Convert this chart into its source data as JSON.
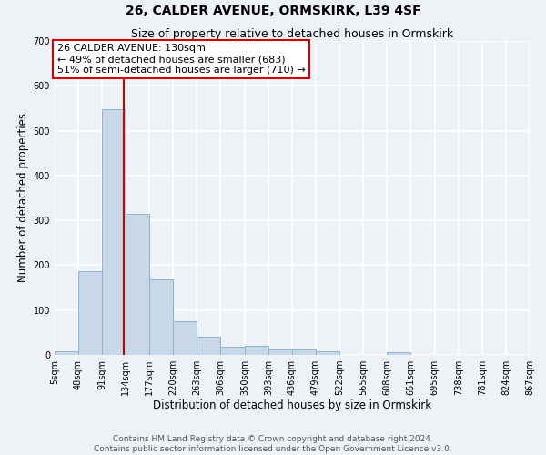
{
  "title": "26, CALDER AVENUE, ORMSKIRK, L39 4SF",
  "subtitle": "Size of property relative to detached houses in Ormskirk",
  "xlabel": "Distribution of detached houses by size in Ormskirk",
  "ylabel": "Number of detached properties",
  "bin_edges": [
    5,
    48,
    91,
    134,
    177,
    220,
    263,
    306,
    350,
    393,
    436,
    479,
    522,
    565,
    608,
    651,
    695,
    738,
    781,
    824,
    867
  ],
  "bar_heights": [
    8,
    187,
    547,
    315,
    168,
    75,
    41,
    18,
    20,
    12,
    12,
    8,
    0,
    0,
    7,
    0,
    0,
    0,
    0,
    0
  ],
  "bar_color": "#c8d8e8",
  "bar_edgecolor": "#8ab4cc",
  "vline_x": 130,
  "vline_color": "#cc0000",
  "annotation_line1": "26 CALDER AVENUE: 130sqm",
  "annotation_line2": "← 49% of detached houses are smaller (683)",
  "annotation_line3": "51% of semi-detached houses are larger (710) →",
  "annotation_box_facecolor": "white",
  "annotation_box_edgecolor": "#cc0000",
  "ylim": [
    0,
    700
  ],
  "yticks": [
    0,
    100,
    200,
    300,
    400,
    500,
    600,
    700
  ],
  "tick_labels": [
    "5sqm",
    "48sqm",
    "91sqm",
    "134sqm",
    "177sqm",
    "220sqm",
    "263sqm",
    "306sqm",
    "350sqm",
    "393sqm",
    "436sqm",
    "479sqm",
    "522sqm",
    "565sqm",
    "608sqm",
    "651sqm",
    "695sqm",
    "738sqm",
    "781sqm",
    "824sqm",
    "867sqm"
  ],
  "footer_line1": "Contains HM Land Registry data © Crown copyright and database right 2024.",
  "footer_line2": "Contains public sector information licensed under the Open Government Licence v3.0.",
  "background_color": "#eef2f7",
  "grid_color": "white",
  "title_fontsize": 10,
  "subtitle_fontsize": 9,
  "axis_label_fontsize": 8.5,
  "tick_fontsize": 7,
  "annotation_fontsize": 8,
  "footer_fontsize": 6.5
}
